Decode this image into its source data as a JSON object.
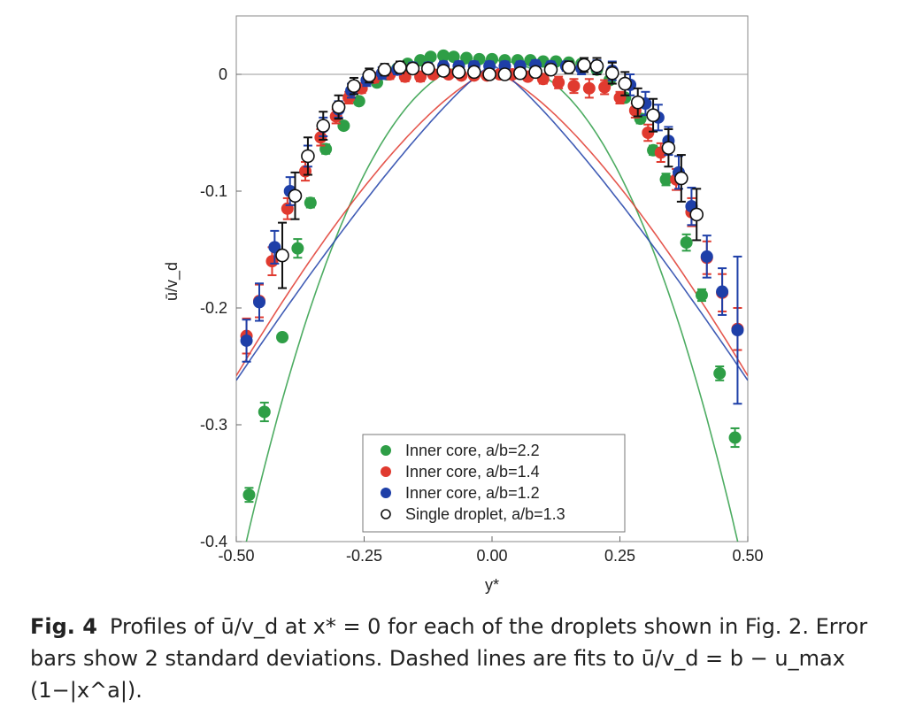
{
  "chart_data": {
    "type": "scatter",
    "title": "",
    "xlabel": "y*",
    "ylabel": "ū/v_d",
    "xlim": [
      -0.5,
      0.5
    ],
    "ylim": [
      -0.4,
      0.05
    ],
    "x_ticks": [
      "-0.50",
      "-0.25",
      "0.00",
      "0.25",
      "0.50"
    ],
    "y_ticks": [
      "0",
      "-0.1",
      "-0.2",
      "-0.3",
      "-0.4"
    ],
    "x_tick_values": [
      -0.5,
      -0.25,
      0.0,
      0.25,
      0.5
    ],
    "y_tick_values": [
      0,
      -0.1,
      -0.2,
      -0.3,
      -0.4
    ],
    "reference_line_y": 0,
    "grid": false,
    "legend_position": "bottom-center",
    "series": [
      {
        "name": "Inner core, a/b=2.2",
        "color": "#2e9e46",
        "marker": "filled",
        "fit_curve": {
          "b": 0.012,
          "umax": 0.45,
          "a": 2.2
        },
        "points": [
          [
            -0.475,
            -0.36,
            0.006
          ],
          [
            -0.445,
            -0.289,
            0.008
          ],
          [
            -0.41,
            -0.225,
            0.003
          ],
          [
            -0.38,
            -0.149,
            0.008
          ],
          [
            -0.355,
            -0.11,
            0.004
          ],
          [
            -0.325,
            -0.064,
            0.004
          ],
          [
            -0.29,
            -0.044,
            0.003
          ],
          [
            -0.26,
            -0.023,
            0.003
          ],
          [
            -0.225,
            -0.007,
            0.002
          ],
          [
            -0.205,
            0.0,
            0.002
          ],
          [
            -0.185,
            0.005,
            0.002
          ],
          [
            -0.165,
            0.009,
            0.002
          ],
          [
            -0.14,
            0.012,
            0.002
          ],
          [
            -0.12,
            0.015,
            0.002
          ],
          [
            -0.095,
            0.016,
            0.002
          ],
          [
            -0.075,
            0.015,
            0.002
          ],
          [
            -0.05,
            0.014,
            0.002
          ],
          [
            -0.025,
            0.013,
            0.002
          ],
          [
            0.0,
            0.013,
            0.002
          ],
          [
            0.025,
            0.012,
            0.002
          ],
          [
            0.05,
            0.012,
            0.002
          ],
          [
            0.075,
            0.012,
            0.002
          ],
          [
            0.1,
            0.011,
            0.002
          ],
          [
            0.125,
            0.011,
            0.002
          ],
          [
            0.15,
            0.01,
            0.002
          ],
          [
            0.175,
            0.009,
            0.002
          ],
          [
            0.205,
            0.004,
            0.002
          ],
          [
            0.23,
            -0.005,
            0.002
          ],
          [
            0.26,
            -0.02,
            0.003
          ],
          [
            0.29,
            -0.038,
            0.004
          ],
          [
            0.315,
            -0.065,
            0.004
          ],
          [
            0.34,
            -0.09,
            0.005
          ],
          [
            0.38,
            -0.144,
            0.007
          ],
          [
            0.41,
            -0.189,
            0.005
          ],
          [
            0.445,
            -0.256,
            0.006
          ],
          [
            0.475,
            -0.311,
            0.008
          ]
        ]
      },
      {
        "name": "Inner core, a/b=1.4",
        "color": "#e03a2f",
        "marker": "filled",
        "fit_curve": {
          "b": 0.002,
          "umax": 0.26,
          "a": 1.4
        },
        "points": [
          [
            -0.48,
            -0.224,
            0.015
          ],
          [
            -0.455,
            -0.194,
            0.014
          ],
          [
            -0.43,
            -0.16,
            0.012
          ],
          [
            -0.4,
            -0.115,
            0.009
          ],
          [
            -0.365,
            -0.083,
            0.008
          ],
          [
            -0.335,
            -0.054,
            0.007
          ],
          [
            -0.305,
            -0.036,
            0.006
          ],
          [
            -0.28,
            -0.02,
            0.005
          ],
          [
            -0.255,
            -0.012,
            0.004
          ],
          [
            -0.23,
            -0.003,
            0.004
          ],
          [
            -0.2,
            0.0,
            0.004
          ],
          [
            -0.17,
            -0.002,
            0.004
          ],
          [
            -0.14,
            -0.002,
            0.004
          ],
          [
            -0.115,
            0.0,
            0.003
          ],
          [
            -0.085,
            0.0,
            0.003
          ],
          [
            -0.06,
            -0.001,
            0.003
          ],
          [
            -0.035,
            -0.001,
            0.003
          ],
          [
            -0.01,
            -0.001,
            0.003
          ],
          [
            0.015,
            0.0,
            0.003
          ],
          [
            0.04,
            0.0,
            0.003
          ],
          [
            0.07,
            -0.002,
            0.003
          ],
          [
            0.1,
            -0.004,
            0.004
          ],
          [
            0.13,
            -0.007,
            0.005
          ],
          [
            0.16,
            -0.01,
            0.006
          ],
          [
            0.19,
            -0.012,
            0.008
          ],
          [
            0.22,
            -0.011,
            0.006
          ],
          [
            0.25,
            -0.02,
            0.005
          ],
          [
            0.28,
            -0.031,
            0.006
          ],
          [
            0.305,
            -0.05,
            0.007
          ],
          [
            0.33,
            -0.067,
            0.008
          ],
          [
            0.36,
            -0.09,
            0.009
          ],
          [
            0.39,
            -0.118,
            0.012
          ],
          [
            0.42,
            -0.157,
            0.014
          ],
          [
            0.45,
            -0.187,
            0.016
          ],
          [
            0.48,
            -0.218,
            0.018
          ]
        ]
      },
      {
        "name": "Inner core, a/b=1.2",
        "color": "#1e3fa8",
        "marker": "filled",
        "fit_curve": {
          "b": 0.008,
          "umax": 0.27,
          "a": 1.2
        },
        "points": [
          [
            -0.48,
            -0.228,
            0.018
          ],
          [
            -0.455,
            -0.195,
            0.016
          ],
          [
            -0.425,
            -0.148,
            0.014
          ],
          [
            -0.395,
            -0.1,
            0.012
          ],
          [
            -0.36,
            -0.07,
            0.009
          ],
          [
            -0.33,
            -0.045,
            0.008
          ],
          [
            -0.3,
            -0.03,
            0.007
          ],
          [
            -0.275,
            -0.014,
            0.006
          ],
          [
            -0.245,
            -0.005,
            0.005
          ],
          [
            -0.215,
            0.001,
            0.005
          ],
          [
            -0.185,
            0.004,
            0.004
          ],
          [
            -0.155,
            0.006,
            0.004
          ],
          [
            -0.125,
            0.006,
            0.004
          ],
          [
            -0.095,
            0.007,
            0.004
          ],
          [
            -0.065,
            0.007,
            0.004
          ],
          [
            -0.035,
            0.007,
            0.004
          ],
          [
            -0.005,
            0.007,
            0.004
          ],
          [
            0.025,
            0.007,
            0.004
          ],
          [
            0.055,
            0.007,
            0.004
          ],
          [
            0.085,
            0.008,
            0.004
          ],
          [
            0.115,
            0.007,
            0.004
          ],
          [
            0.145,
            0.007,
            0.004
          ],
          [
            0.175,
            0.005,
            0.005
          ],
          [
            0.205,
            0.006,
            0.006
          ],
          [
            0.235,
            0.003,
            0.008
          ],
          [
            0.27,
            -0.009,
            0.009
          ],
          [
            0.3,
            -0.025,
            0.01
          ],
          [
            0.325,
            -0.037,
            0.011
          ],
          [
            0.345,
            -0.057,
            0.012
          ],
          [
            0.365,
            -0.084,
            0.014
          ],
          [
            0.39,
            -0.113,
            0.016
          ],
          [
            0.42,
            -0.156,
            0.018
          ],
          [
            0.45,
            -0.186,
            0.02
          ],
          [
            0.48,
            -0.219,
            0.063
          ]
        ]
      },
      {
        "name": "Single droplet, a/b=1.3",
        "color": "#111111",
        "marker": "open",
        "points": [
          [
            -0.41,
            -0.155,
            0.028
          ],
          [
            -0.385,
            -0.104,
            0.02
          ],
          [
            -0.36,
            -0.07,
            0.016
          ],
          [
            -0.33,
            -0.044,
            0.012
          ],
          [
            -0.3,
            -0.028,
            0.01
          ],
          [
            -0.27,
            -0.01,
            0.007
          ],
          [
            -0.24,
            -0.001,
            0.006
          ],
          [
            -0.21,
            0.004,
            0.005
          ],
          [
            -0.18,
            0.006,
            0.005
          ],
          [
            -0.155,
            0.005,
            0.004
          ],
          [
            -0.125,
            0.005,
            0.004
          ],
          [
            -0.095,
            0.003,
            0.004
          ],
          [
            -0.065,
            0.002,
            0.004
          ],
          [
            -0.035,
            0.002,
            0.004
          ],
          [
            -0.005,
            0.0,
            0.004
          ],
          [
            0.025,
            0.0,
            0.004
          ],
          [
            0.055,
            0.001,
            0.004
          ],
          [
            0.085,
            0.002,
            0.004
          ],
          [
            0.115,
            0.004,
            0.004
          ],
          [
            0.15,
            0.006,
            0.005
          ],
          [
            0.18,
            0.008,
            0.006
          ],
          [
            0.205,
            0.007,
            0.007
          ],
          [
            0.235,
            0.001,
            0.009
          ],
          [
            0.26,
            -0.008,
            0.01
          ],
          [
            0.285,
            -0.024,
            0.012
          ],
          [
            0.315,
            -0.035,
            0.014
          ],
          [
            0.345,
            -0.063,
            0.016
          ],
          [
            0.37,
            -0.089,
            0.02
          ],
          [
            0.4,
            -0.12,
            0.022
          ]
        ]
      }
    ]
  },
  "caption": {
    "label": "Fig. 4",
    "text": "Profiles of ū/v_d at x* = 0 for each of the droplets shown in Fig. 2. Error bars show 2 standard deviations. Dashed lines are fits to ū/v_d = b − u_max (1−|x^a|)."
  }
}
